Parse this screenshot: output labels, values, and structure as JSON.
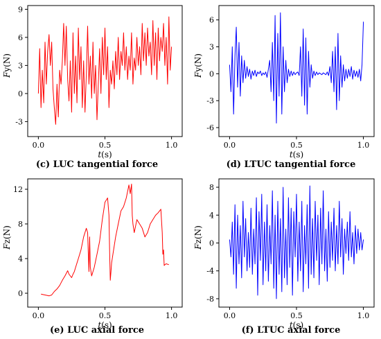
{
  "chart_data": [
    {
      "type": "line",
      "caption": "(c) LUC tangential force",
      "xlabel": {
        "italic": "t",
        "rest": "(s)"
      },
      "ylabel": {
        "italic": "F",
        "rest": "y(N)"
      },
      "xlim": [
        -0.08,
        1.08
      ],
      "ylim": [
        -4.6,
        9.4
      ],
      "xticks": [
        0.0,
        0.5,
        1.0
      ],
      "xtick_labels": [
        "0.0",
        "0.5",
        "1.0"
      ],
      "yticks": [
        -3,
        0,
        3,
        6,
        9
      ],
      "ytick_labels": [
        "-3",
        "0",
        "3",
        "6",
        "9"
      ],
      "color": "#ff0000",
      "series": [
        {
          "x": [
            0.0,
            0.01,
            0.02,
            0.03,
            0.04,
            0.05,
            0.06,
            0.07,
            0.08,
            0.09,
            0.1,
            0.11,
            0.12,
            0.13,
            0.14,
            0.15,
            0.16,
            0.17,
            0.18,
            0.19,
            0.2,
            0.21,
            0.22,
            0.23,
            0.24,
            0.25,
            0.26,
            0.27,
            0.28,
            0.29,
            0.3,
            0.31,
            0.32,
            0.33,
            0.34,
            0.35,
            0.36,
            0.37,
            0.38,
            0.39,
            0.4,
            0.41,
            0.42,
            0.43,
            0.44,
            0.45,
            0.46,
            0.47,
            0.48,
            0.49,
            0.5,
            0.51,
            0.52,
            0.53,
            0.54,
            0.55,
            0.56,
            0.57,
            0.58,
            0.59,
            0.6,
            0.61,
            0.62,
            0.63,
            0.64,
            0.65,
            0.66,
            0.67,
            0.68,
            0.69,
            0.7,
            0.71,
            0.72,
            0.73,
            0.74,
            0.75,
            0.76,
            0.77,
            0.78,
            0.79,
            0.8,
            0.81,
            0.82,
            0.83,
            0.84,
            0.85,
            0.86,
            0.87,
            0.88,
            0.89,
            0.9,
            0.91,
            0.92,
            0.93,
            0.94,
            0.95,
            0.96,
            0.97,
            0.98,
            0.99,
            1.0
          ],
          "y": [
            0.0,
            4.8,
            -1.5,
            2.5,
            -1.0,
            5.5,
            1.0,
            4.5,
            6.3,
            3.0,
            5.5,
            0.5,
            -1.5,
            -3.3,
            1.0,
            -2.5,
            2.5,
            1.0,
            3.5,
            7.5,
            3.0,
            7.2,
            1.5,
            -0.8,
            3.5,
            -2.0,
            6.5,
            0.0,
            4.0,
            -1.0,
            7.0,
            1.5,
            5.0,
            -1.5,
            3.5,
            -2.0,
            2.0,
            7.2,
            1.0,
            4.0,
            -0.5,
            5.5,
            0.0,
            3.0,
            -2.8,
            1.0,
            4.8,
            0.0,
            6.0,
            2.0,
            7.0,
            1.5,
            5.0,
            -1.5,
            2.5,
            1.0,
            3.5,
            0.5,
            4.5,
            2.0,
            6.0,
            1.5,
            4.5,
            3.0,
            6.5,
            2.5,
            5.0,
            1.5,
            4.0,
            2.5,
            6.5,
            1.0,
            3.8,
            2.5,
            6.0,
            3.0,
            5.0,
            2.0,
            7.5,
            3.5,
            6.5,
            3.0,
            7.0,
            4.0,
            5.5,
            2.0,
            7.8,
            3.0,
            6.5,
            1.5,
            7.0,
            3.5,
            6.0,
            4.5,
            7.5,
            3.0,
            6.0,
            1.0,
            8.2,
            2.5,
            5.0
          ]
        }
      ]
    },
    {
      "type": "line",
      "caption": "(d) LTUC tangential force",
      "xlabel": {
        "italic": "t",
        "rest": "(s)"
      },
      "ylabel": {
        "italic": "F",
        "rest": "y(N)"
      },
      "xlim": [
        -0.08,
        1.08
      ],
      "ylim": [
        -7.0,
        7.6
      ],
      "xticks": [
        0.0,
        0.5,
        1.0
      ],
      "xtick_labels": [
        "0.0",
        "0.5",
        "1.0"
      ],
      "yticks": [
        -6,
        -3,
        0,
        3,
        6
      ],
      "ytick_labels": [
        "-6",
        "-3",
        "0",
        "3",
        "6"
      ],
      "color": "#0000ff",
      "series": [
        {
          "x": [
            0.0,
            0.01,
            0.02,
            0.03,
            0.04,
            0.05,
            0.06,
            0.07,
            0.08,
            0.09,
            0.1,
            0.11,
            0.12,
            0.13,
            0.14,
            0.15,
            0.16,
            0.17,
            0.18,
            0.19,
            0.2,
            0.21,
            0.22,
            0.23,
            0.24,
            0.25,
            0.26,
            0.27,
            0.28,
            0.29,
            0.3,
            0.31,
            0.32,
            0.33,
            0.34,
            0.35,
            0.36,
            0.37,
            0.38,
            0.39,
            0.4,
            0.41,
            0.42,
            0.43,
            0.44,
            0.45,
            0.46,
            0.47,
            0.48,
            0.49,
            0.5,
            0.51,
            0.52,
            0.53,
            0.54,
            0.55,
            0.56,
            0.57,
            0.58,
            0.59,
            0.6,
            0.61,
            0.62,
            0.63,
            0.64,
            0.65,
            0.66,
            0.67,
            0.68,
            0.69,
            0.7,
            0.71,
            0.72,
            0.73,
            0.74,
            0.75,
            0.76,
            0.77,
            0.78,
            0.79,
            0.8,
            0.81,
            0.82,
            0.83,
            0.84,
            0.85,
            0.86,
            0.87,
            0.88,
            0.89,
            0.9,
            0.91,
            0.92,
            0.93,
            0.94,
            0.95,
            0.96,
            0.97,
            0.98,
            0.99,
            1.0
          ],
          "y": [
            1.0,
            -2.0,
            3.0,
            -4.5,
            2.0,
            5.2,
            -1.5,
            3.5,
            -2.5,
            2.0,
            -1.0,
            1.5,
            -0.5,
            0.8,
            -0.3,
            0.5,
            -0.6,
            0.3,
            -0.2,
            0.4,
            -0.3,
            0.2,
            0.0,
            0.3,
            -0.2,
            0.1,
            -0.1,
            0.2,
            -0.4,
            0.5,
            1.5,
            -2.0,
            3.5,
            -3.0,
            6.5,
            -5.5,
            4.5,
            -2.5,
            6.8,
            -4.5,
            3.0,
            -2.0,
            1.5,
            -1.0,
            0.5,
            -0.3,
            0.3,
            -0.2,
            0.2,
            -0.1,
            0.1,
            0.2,
            -0.2,
            3.0,
            -2.5,
            5.0,
            -3.5,
            4.0,
            -4.5,
            2.5,
            -1.5,
            1.0,
            -0.5,
            0.3,
            -0.2,
            0.2,
            -0.1,
            0.1,
            0.0,
            -0.1,
            0.1,
            0.0,
            -0.1,
            0.2,
            -0.2,
            0.8,
            -1.0,
            2.5,
            -2.0,
            3.0,
            -4.0,
            4.5,
            -3.0,
            2.0,
            -1.5,
            1.0,
            -0.8,
            0.5,
            -0.5,
            0.5,
            -0.3,
            0.8,
            -0.6,
            0.4,
            -0.3,
            0.3,
            -0.4,
            0.5,
            -0.8,
            1.0,
            5.8
          ]
        }
      ]
    },
    {
      "type": "line",
      "caption": "(e) LUC axial force",
      "xlabel": {
        "italic": "t",
        "rest": "(s)"
      },
      "ylabel": {
        "italic": "F",
        "rest": "z(N)"
      },
      "xlim": [
        -0.08,
        1.08
      ],
      "ylim": [
        -1.6,
        13.2
      ],
      "xticks": [
        0.0,
        0.5,
        1.0
      ],
      "xtick_labels": [
        "0.0",
        "0.5",
        "1.0"
      ],
      "yticks": [
        0,
        4,
        8,
        12
      ],
      "ytick_labels": [
        "0",
        "4",
        "8",
        "12"
      ],
      "color": "#ff0000",
      "series": [
        {
          "x": [
            0.02,
            0.05,
            0.08,
            0.1,
            0.12,
            0.14,
            0.16,
            0.18,
            0.2,
            0.22,
            0.23,
            0.24,
            0.25,
            0.26,
            0.27,
            0.28,
            0.3,
            0.32,
            0.34,
            0.36,
            0.37,
            0.375,
            0.38,
            0.385,
            0.39,
            0.4,
            0.42,
            0.44,
            0.46,
            0.48,
            0.5,
            0.52,
            0.53,
            0.535,
            0.54,
            0.545,
            0.55,
            0.56,
            0.58,
            0.6,
            0.62,
            0.64,
            0.66,
            0.68,
            0.69,
            0.7,
            0.705,
            0.71,
            0.72,
            0.74,
            0.76,
            0.78,
            0.8,
            0.82,
            0.84,
            0.86,
            0.88,
            0.9,
            0.92,
            0.93,
            0.935,
            0.94,
            0.945,
            0.95,
            0.96,
            0.98
          ],
          "y": [
            -0.1,
            -0.2,
            -0.3,
            -0.2,
            0.2,
            0.5,
            0.9,
            1.5,
            2.0,
            2.6,
            2.2,
            2.0,
            1.8,
            2.2,
            2.5,
            3.0,
            4.0,
            5.0,
            6.5,
            7.5,
            7.0,
            4.5,
            2.5,
            6.5,
            3.0,
            2.0,
            3.0,
            4.5,
            6.0,
            8.5,
            10.5,
            11.0,
            9.0,
            5.0,
            1.5,
            2.5,
            3.5,
            4.5,
            6.5,
            8.0,
            9.5,
            10.0,
            11.0,
            12.5,
            11.5,
            12.6,
            9.0,
            8.0,
            7.0,
            8.5,
            8.0,
            7.5,
            6.5,
            7.0,
            8.0,
            8.5,
            9.0,
            9.3,
            9.7,
            7.0,
            4.5,
            5.0,
            3.2,
            3.3,
            3.4,
            3.3
          ]
        }
      ]
    },
    {
      "type": "line",
      "caption": "(f) LTUC axial force",
      "xlabel": {
        "italic": "t",
        "rest": "(s)"
      },
      "ylabel": {
        "italic": "F",
        "rest": "z(N)"
      },
      "xlim": [
        -0.08,
        1.08
      ],
      "ylim": [
        -9.2,
        9.2
      ],
      "xticks": [
        0.0,
        0.5,
        1.0
      ],
      "xtick_labels": [
        "0.0",
        "0.5",
        "1.0"
      ],
      "yticks": [
        -8,
        -4,
        0,
        4,
        8
      ],
      "ytick_labels": [
        "-8",
        "-4",
        "0",
        "4",
        "8"
      ],
      "color": "#0000ff",
      "series": [
        {
          "x": [
            0.0,
            0.01,
            0.02,
            0.03,
            0.04,
            0.05,
            0.06,
            0.07,
            0.08,
            0.09,
            0.1,
            0.11,
            0.12,
            0.13,
            0.14,
            0.15,
            0.16,
            0.17,
            0.18,
            0.19,
            0.2,
            0.21,
            0.22,
            0.23,
            0.24,
            0.25,
            0.26,
            0.27,
            0.28,
            0.29,
            0.3,
            0.31,
            0.32,
            0.33,
            0.34,
            0.35,
            0.36,
            0.37,
            0.38,
            0.39,
            0.4,
            0.41,
            0.42,
            0.43,
            0.44,
            0.45,
            0.46,
            0.47,
            0.48,
            0.49,
            0.5,
            0.51,
            0.52,
            0.53,
            0.54,
            0.55,
            0.56,
            0.57,
            0.58,
            0.59,
            0.6,
            0.61,
            0.62,
            0.63,
            0.64,
            0.65,
            0.66,
            0.67,
            0.68,
            0.69,
            0.7,
            0.71,
            0.72,
            0.73,
            0.74,
            0.75,
            0.76,
            0.77,
            0.78,
            0.79,
            0.8,
            0.81,
            0.82,
            0.83,
            0.84,
            0.85,
            0.86,
            0.87,
            0.88,
            0.89,
            0.9,
            0.91,
            0.92,
            0.93,
            0.94,
            0.95,
            0.96,
            0.97,
            0.98,
            0.99,
            1.0
          ],
          "y": [
            0.5,
            -2.0,
            3.0,
            -4.5,
            5.5,
            -6.5,
            4.0,
            -3.0,
            2.5,
            -5.0,
            6.0,
            -2.0,
            3.5,
            -4.0,
            1.5,
            -3.5,
            5.0,
            -4.5,
            2.0,
            -3.0,
            6.5,
            -7.5,
            4.5,
            -2.5,
            7.0,
            -6.0,
            3.0,
            -4.0,
            5.5,
            -5.5,
            2.5,
            -3.0,
            7.5,
            -6.5,
            4.0,
            -8.0,
            6.0,
            -4.5,
            3.5,
            -7.0,
            8.0,
            -5.0,
            2.0,
            -6.0,
            6.5,
            -3.5,
            5.0,
            -7.5,
            4.5,
            -2.0,
            7.0,
            -5.5,
            3.0,
            -4.0,
            6.0,
            -7.0,
            2.5,
            -3.0,
            5.5,
            -6.5,
            8.2,
            -4.5,
            3.5,
            -5.0,
            6.0,
            -2.5,
            4.0,
            -6.0,
            5.0,
            -3.0,
            7.5,
            -4.0,
            2.0,
            -5.5,
            4.5,
            -3.5,
            3.0,
            -2.5,
            5.0,
            -4.0,
            2.5,
            -3.0,
            6.0,
            -2.0,
            3.5,
            -4.5,
            2.0,
            -1.5,
            3.0,
            -2.5,
            4.5,
            -2.0,
            1.5,
            -3.0,
            2.5,
            -1.5,
            2.0,
            -1.0,
            1.5,
            -1.0,
            0.5
          ]
        }
      ]
    }
  ]
}
